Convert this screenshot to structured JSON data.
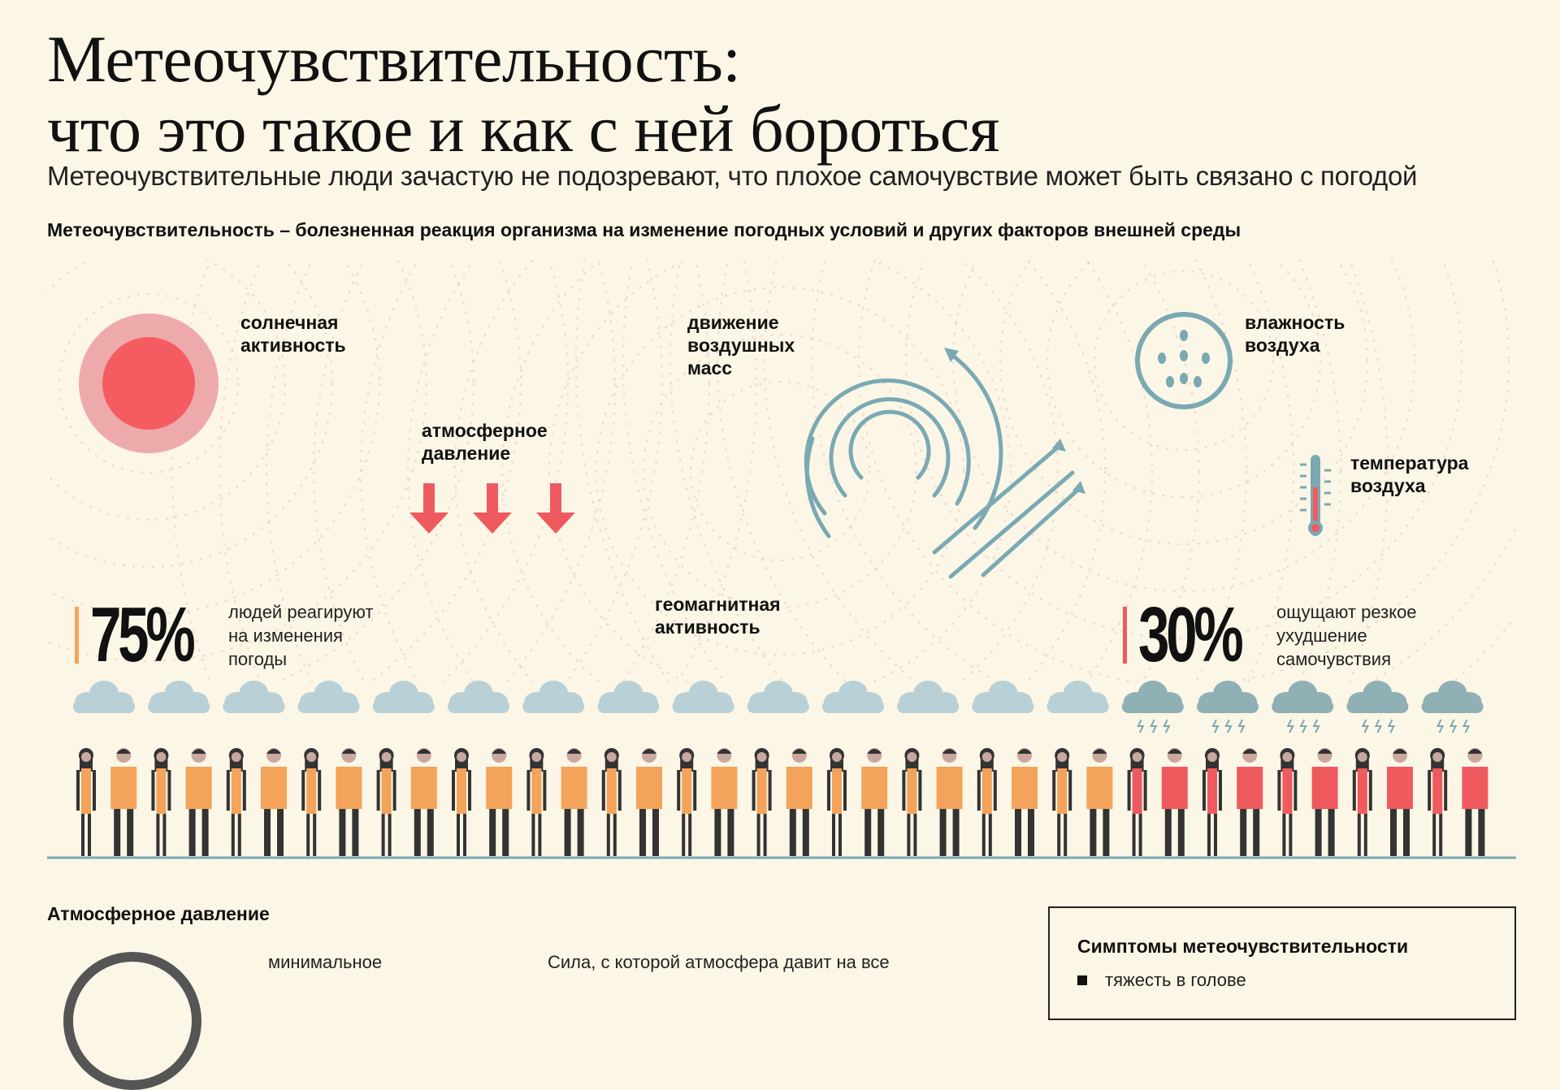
{
  "header": {
    "title_line1": "Метеочувствительность:",
    "title_line2": "что это такое и как с ней бороться",
    "subtitle": "Метеочувствительные люди зачастую не подозревают, что плохое самочувствие может быть связано с погодой",
    "definition": "Метеочувствительность – болезненная реакция организма на изменение погодных условий и других факторов внешней среды"
  },
  "factors": {
    "solar": "солнечная\nактивность",
    "pressure": "атмосферное\nдавление",
    "air_masses": "движение\nвоздушных\nмасс",
    "humidity": "влажность\nвоздуха",
    "temperature": "температура\nвоздуха",
    "geomagnetic": "геомагнитная\nактивность"
  },
  "stats": {
    "left": {
      "value": "75%",
      "text": "людей реагируют\nна изменения\nпогоды"
    },
    "right": {
      "value": "30%",
      "text": "ощущают резкое\nухудшение\nсамочувствия"
    }
  },
  "people": {
    "total": 38,
    "orange_count": 28,
    "red_count": 10
  },
  "colors": {
    "background": "#fbf6e6",
    "orange": "#f3a35a",
    "red": "#ef5a5f",
    "sun_outer": "#eeaaaa",
    "sun_inner": "#f55c62",
    "teal": "#7aa9b3",
    "cloud_light": "#b9d0d6",
    "cloud_storm": "#8fb0b4",
    "dark": "#333333"
  },
  "icons": [
    "sun-icon",
    "down-arrow-icon",
    "wind-swirl-icon",
    "humidity-drops-icon",
    "thermometer-icon",
    "cloud-icon",
    "storm-cloud-icon",
    "person-icon"
  ],
  "pressure_section": {
    "heading": "Атмосферное давление",
    "minimum_label": "минимальное",
    "force_text": "Сила, с которой атмосфера давит на все"
  },
  "symptoms": {
    "heading": "Симптомы метеочувствительности",
    "first_item": "тяжесть в голове"
  }
}
